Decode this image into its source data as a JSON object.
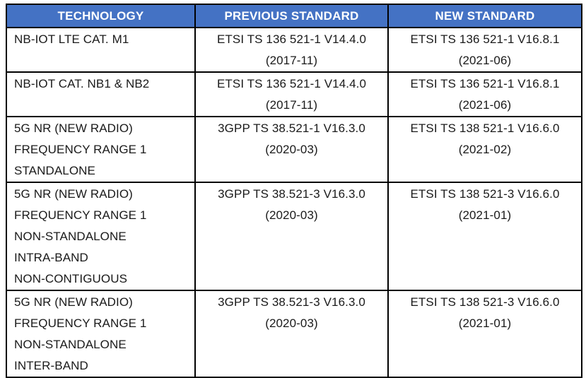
{
  "colors": {
    "header_background": "#4472C4",
    "header_text": "#FFFFFF",
    "border": "#000000",
    "body_text": "#1A1A1A",
    "page_background": "#FFFFFF"
  },
  "table": {
    "columns": [
      "TECHNOLOGY",
      "PREVIOUS STANDARD",
      "NEW STANDARD"
    ],
    "rows": [
      {
        "technology": "NB-IOT LTE CAT. M1",
        "previous_standard": "ETSI TS 136 521-1 V14.4.0\n(2017-11)",
        "new_standard": "ETSI TS 136 521-1 V16.8.1\n(2021-06)"
      },
      {
        "technology": "NB-IOT CAT. NB1 & NB2",
        "previous_standard": "ETSI TS 136 521-1 V14.4.0\n(2017-11)",
        "new_standard": "ETSI TS 136 521-1 V16.8.1\n(2021-06)"
      },
      {
        "technology": "5G NR (NEW RADIO)\nFREQUENCY RANGE 1\nSTANDALONE",
        "previous_standard": "3GPP TS 38.521-1 V16.3.0\n(2020-03)",
        "new_standard": "ETSI TS 138 521-1 V16.6.0\n(2021-02)"
      },
      {
        "technology": "5G NR (NEW RADIO)\nFREQUENCY RANGE 1\nNON-STANDALONE\nINTRA-BAND\nNON-CONTIGUOUS",
        "previous_standard": "3GPP TS 38.521-3 V16.3.0\n(2020-03)",
        "new_standard": "ETSI TS 138 521-3 V16.6.0\n(2021-01)"
      },
      {
        "technology": "5G NR (NEW RADIO)\nFREQUENCY RANGE 1\nNON-STANDALONE\nINTER-BAND",
        "previous_standard": "3GPP TS 38.521-3 V16.3.0\n(2020-03)",
        "new_standard": "ETSI TS 138 521-3 V16.6.0\n(2021-01)"
      }
    ]
  }
}
